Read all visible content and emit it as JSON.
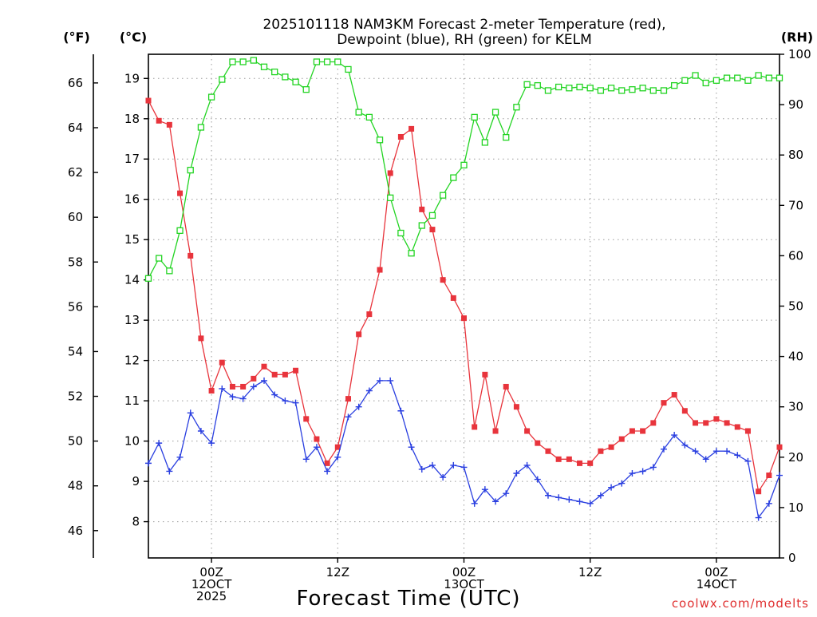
{
  "chart_data": {
    "type": "line",
    "title_lines": [
      "2025101118 NAM3KM Forecast 2-meter Temperature (red),",
      "Dewpoint (blue), RH (green) for KELM"
    ],
    "xlabel": "Forecast Time (UTC)",
    "credit": "coolwx.com/modelts",
    "axis_units": {
      "fahrenheit": "(°F)",
      "celsius": "(°C)",
      "rh": "(RH)"
    },
    "x_range_hours": [
      -6,
      54
    ],
    "x_ticks": [
      {
        "hour": 0,
        "lines": [
          "00Z",
          "12OCT",
          "2025"
        ]
      },
      {
        "hour": 12,
        "lines": [
          "12Z"
        ]
      },
      {
        "hour": 24,
        "lines": [
          "00Z",
          "13OCT"
        ]
      },
      {
        "hour": 36,
        "lines": [
          "12Z"
        ]
      },
      {
        "hour": 48,
        "lines": [
          "00Z",
          "14OCT"
        ]
      }
    ],
    "celsius_range": [
      7.1,
      19.6
    ],
    "celsius_ticks": [
      8,
      9,
      10,
      11,
      12,
      13,
      14,
      15,
      16,
      17,
      18,
      19
    ],
    "fahrenheit_ticks": [
      46,
      48,
      50,
      52,
      54,
      56,
      58,
      60,
      62,
      64,
      66
    ],
    "rh_range": [
      0,
      100
    ],
    "rh_ticks": [
      0,
      10,
      20,
      30,
      40,
      50,
      60,
      70,
      80,
      90,
      100
    ],
    "grid": true,
    "series": [
      {
        "name": "2-meter Temperature",
        "color": "#e8343c",
        "marker": "filled-square",
        "axis": "celsius",
        "x": [
          -6,
          -5,
          -4,
          -3,
          -2,
          -1,
          0,
          1,
          2,
          3,
          4,
          5,
          6,
          7,
          8,
          9,
          10,
          11,
          12,
          13,
          14,
          15,
          16,
          17,
          18,
          19,
          20,
          21,
          22,
          23,
          24,
          25,
          26,
          27,
          28,
          29,
          30,
          31,
          32,
          33,
          34,
          35,
          36,
          37,
          38,
          39,
          40,
          41,
          42,
          43,
          44,
          45,
          46,
          47,
          48,
          49,
          50,
          51,
          52,
          53,
          54
        ],
        "values": [
          18.45,
          17.95,
          17.85,
          16.15,
          14.6,
          12.55,
          11.25,
          11.95,
          11.35,
          11.35,
          11.55,
          11.85,
          11.65,
          11.65,
          11.75,
          10.55,
          10.05,
          9.45,
          9.85,
          11.05,
          12.65,
          13.15,
          14.25,
          16.65,
          17.55,
          17.75,
          15.75,
          15.25,
          14.0,
          13.55,
          13.05,
          10.35,
          11.65,
          10.25,
          11.35,
          10.85,
          10.25,
          9.95,
          9.75,
          9.55,
          9.55,
          9.45,
          9.45,
          9.75,
          9.85,
          10.05,
          10.25,
          10.25,
          10.45,
          10.95,
          11.15,
          10.75,
          10.45,
          10.45,
          10.55,
          10.45,
          10.35,
          10.25,
          8.75,
          9.15,
          9.85
        ]
      },
      {
        "name": "Dewpoint",
        "color": "#2a3fe0",
        "marker": "plus",
        "axis": "celsius",
        "x": [
          -6,
          -5,
          -4,
          -3,
          -2,
          -1,
          0,
          1,
          2,
          3,
          4,
          5,
          6,
          7,
          8,
          9,
          10,
          11,
          12,
          13,
          14,
          15,
          16,
          17,
          18,
          19,
          20,
          21,
          22,
          23,
          24,
          25,
          26,
          27,
          28,
          29,
          30,
          31,
          32,
          33,
          34,
          35,
          36,
          37,
          38,
          39,
          40,
          41,
          42,
          43,
          44,
          45,
          46,
          47,
          48,
          49,
          50,
          51,
          52,
          53,
          54
        ],
        "values": [
          9.45,
          9.95,
          9.25,
          9.6,
          10.7,
          10.25,
          9.95,
          11.3,
          11.1,
          11.05,
          11.35,
          11.5,
          11.15,
          11.0,
          10.95,
          9.55,
          9.85,
          9.25,
          9.6,
          10.6,
          10.85,
          11.25,
          11.5,
          11.5,
          10.75,
          9.85,
          9.3,
          9.4,
          9.1,
          9.4,
          9.35,
          8.45,
          8.8,
          8.5,
          8.7,
          9.2,
          9.4,
          9.05,
          8.65,
          8.6,
          8.55,
          8.5,
          8.45,
          8.65,
          8.85,
          8.95,
          9.2,
          9.25,
          9.35,
          9.8,
          10.15,
          9.9,
          9.75,
          9.55,
          9.75,
          9.75,
          9.65,
          9.5,
          8.1,
          8.45,
          9.15
        ]
      },
      {
        "name": "RH",
        "color": "#22d422",
        "marker": "open-square",
        "axis": "rh",
        "x": [
          -6,
          -5,
          -4,
          -3,
          -2,
          -1,
          0,
          1,
          2,
          3,
          4,
          5,
          6,
          7,
          8,
          9,
          10,
          11,
          12,
          13,
          14,
          15,
          16,
          17,
          18,
          19,
          20,
          21,
          22,
          23,
          24,
          25,
          26,
          27,
          28,
          29,
          30,
          31,
          32,
          33,
          34,
          35,
          36,
          37,
          38,
          39,
          40,
          41,
          42,
          43,
          44,
          45,
          46,
          47,
          48,
          49,
          50,
          51,
          52,
          53,
          54
        ],
        "values": [
          55.5,
          59.5,
          57,
          65,
          77,
          85.5,
          91.5,
          95,
          98.5,
          98.5,
          98.8,
          97.5,
          96.5,
          95.5,
          94.5,
          93,
          98.5,
          98.5,
          98.5,
          97,
          88.5,
          87.5,
          83,
          71.5,
          64.5,
          60.5,
          66,
          68,
          72,
          75.5,
          78,
          87.5,
          82.5,
          88.5,
          83.5,
          89.5,
          94,
          93.8,
          92.8,
          93.5,
          93.3,
          93.5,
          93.3,
          92.8,
          93.3,
          92.8,
          93,
          93.3,
          92.8,
          92.8,
          93.8,
          94.8,
          95.8,
          94.3,
          94.8,
          95.3,
          95.3,
          94.8,
          95.8,
          95.3,
          95.3
        ]
      }
    ]
  }
}
